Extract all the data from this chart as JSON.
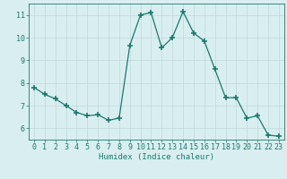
{
  "x": [
    0,
    1,
    2,
    3,
    4,
    5,
    6,
    7,
    8,
    9,
    10,
    11,
    12,
    13,
    14,
    15,
    16,
    17,
    18,
    19,
    20,
    21,
    22,
    23
  ],
  "y": [
    7.8,
    7.5,
    7.3,
    7.0,
    6.7,
    6.55,
    6.6,
    6.35,
    6.45,
    9.65,
    11.0,
    11.1,
    9.55,
    10.0,
    11.15,
    10.2,
    9.85,
    8.6,
    7.35,
    7.35,
    6.45,
    6.55,
    5.7,
    5.65
  ],
  "line_color": "#1a7a6e",
  "marker": "+",
  "marker_size": 4,
  "marker_lw": 1.2,
  "bg_color": "#d9eef0",
  "grid_color": "#c0d8da",
  "xlabel": "Humidex (Indice chaleur)",
  "xlabel_fontsize": 6.5,
  "tick_fontsize": 6,
  "ylim": [
    5.5,
    11.5
  ],
  "xlim": [
    -0.5,
    23.5
  ],
  "yticks": [
    6,
    7,
    8,
    9,
    10,
    11
  ],
  "xticks": [
    0,
    1,
    2,
    3,
    4,
    5,
    6,
    7,
    8,
    9,
    10,
    11,
    12,
    13,
    14,
    15,
    16,
    17,
    18,
    19,
    20,
    21,
    22,
    23
  ]
}
